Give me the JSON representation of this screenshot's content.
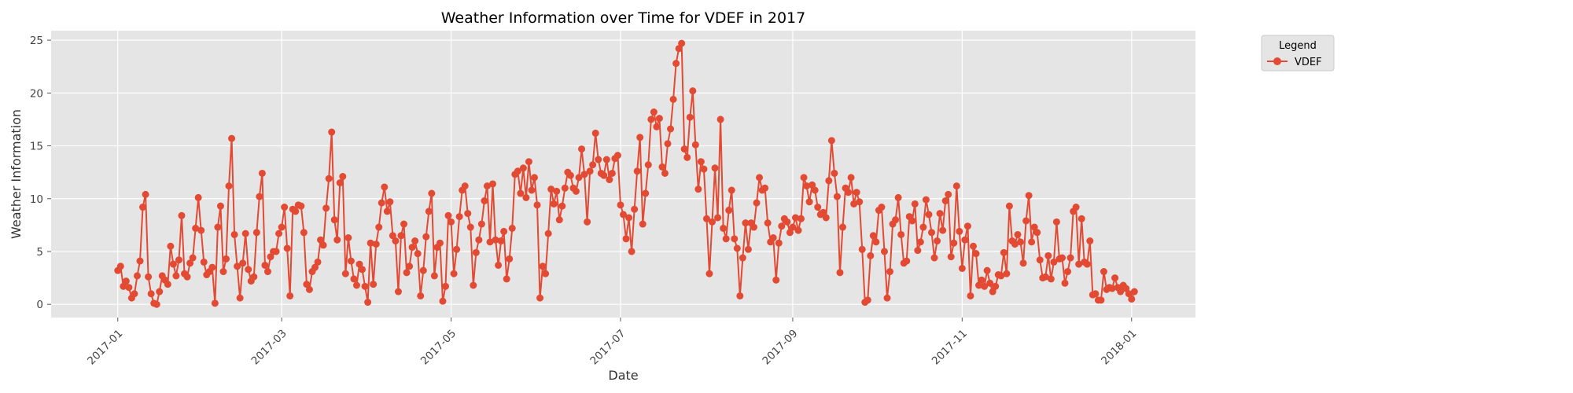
{
  "chart_data": {
    "type": "line",
    "title": "Weather Information over Time for VDEF in 2017",
    "xlabel": "Date",
    "ylabel": "Weather Information",
    "xlim": [
      "2016-12-08",
      "2018-01-24"
    ],
    "ylim": [
      -1.25,
      25.9
    ],
    "x_ticks": [
      "2017-01",
      "2017-03",
      "2017-05",
      "2017-07",
      "2017-09",
      "2017-11",
      "2018-01"
    ],
    "y_ticks": [
      0,
      5,
      10,
      15,
      20,
      25
    ],
    "grid": true,
    "legend": {
      "title": "Legend",
      "placement": "outside-top-right"
    },
    "colors": {
      "series": "#E24A33",
      "plot_bg": "#E5E5E5",
      "grid": "#FFFFFF"
    },
    "series": [
      {
        "name": "VDEF",
        "start_date": "2017-01-01",
        "step_days": 1,
        "values": [
          3.2,
          3.6,
          1.7,
          2.2,
          1.6,
          0.6,
          1.0,
          2.7,
          4.1,
          9.2,
          10.4,
          2.6,
          1.0,
          0.1,
          0.0,
          1.2,
          2.7,
          2.3,
          1.9,
          5.5,
          3.8,
          2.7,
          4.2,
          8.4,
          2.9,
          2.6,
          3.9,
          4.4,
          7.2,
          10.1,
          7.0,
          4.0,
          2.8,
          3.1,
          3.5,
          0.1,
          7.3,
          9.3,
          3.1,
          4.3,
          11.2,
          15.7,
          6.6,
          3.6,
          0.6,
          3.9,
          6.7,
          3.3,
          2.2,
          2.6,
          6.8,
          10.2,
          12.4,
          3.7,
          3.1,
          4.5,
          5.0,
          5.0,
          6.7,
          7.3,
          9.2,
          5.3,
          0.8,
          9.0,
          8.8,
          9.4,
          9.3,
          6.8,
          1.9,
          1.4,
          3.1,
          3.5,
          4.0,
          6.1,
          5.6,
          9.1,
          11.9,
          16.3,
          8.0,
          6.1,
          11.5,
          12.1,
          2.9,
          6.3,
          4.1,
          2.4,
          1.8,
          3.8,
          3.3,
          1.7,
          0.2,
          5.8,
          1.9,
          5.7,
          7.3,
          9.6,
          11.1,
          8.8,
          9.7,
          6.5,
          6.0,
          1.2,
          6.5,
          7.6,
          3.0,
          3.6,
          5.4,
          6.0,
          4.8,
          0.8,
          3.2,
          6.4,
          8.8,
          10.5,
          2.7,
          5.4,
          5.8,
          0.3,
          1.7,
          8.4,
          7.8,
          2.9,
          5.2,
          8.3,
          10.8,
          11.2,
          8.6,
          7.3,
          1.8,
          4.9,
          6.1,
          7.6,
          9.8,
          11.2,
          5.9,
          11.4,
          6.1,
          3.7,
          6.0,
          6.9,
          2.4,
          4.3,
          7.2,
          12.3,
          12.6,
          10.5,
          12.9,
          10.1,
          13.5,
          10.8,
          12.0,
          9.4,
          0.6,
          3.6,
          2.9,
          6.7,
          10.9,
          9.5,
          10.7,
          8.0,
          9.3,
          11.0,
          12.5,
          12.2,
          11.0,
          10.7,
          12.0,
          14.7,
          12.3,
          7.8,
          12.6,
          13.2,
          16.2,
          13.7,
          12.4,
          12.2,
          13.7,
          11.8,
          12.4,
          13.8,
          14.1,
          9.4,
          8.5,
          6.2,
          8.2,
          5.0,
          9.0,
          12.6,
          15.8,
          7.6,
          10.5,
          13.2,
          17.5,
          18.2,
          16.8,
          17.6,
          13.0,
          12.4,
          15.2,
          16.6,
          19.4,
          22.8,
          24.2,
          24.7,
          14.7,
          13.9,
          17.7,
          20.2,
          15.1,
          10.9,
          13.5,
          12.8,
          8.1,
          2.9,
          7.8,
          12.9,
          8.2,
          17.5,
          7.2,
          6.2,
          8.9,
          10.8,
          6.2,
          5.3,
          0.8,
          4.4,
          7.7,
          5.2,
          7.7,
          7.3,
          9.6,
          12.0,
          10.8,
          11.0,
          7.7,
          5.9,
          6.3,
          2.3,
          5.8,
          7.4,
          8.1,
          7.8,
          6.8,
          7.3,
          8.2,
          7.0,
          8.1,
          12.0,
          11.2,
          9.7,
          11.3,
          10.8,
          9.2,
          8.5,
          8.7,
          8.2,
          11.7,
          15.5,
          12.4,
          10.2,
          3.0,
          7.3,
          11.0,
          10.6,
          12.0,
          9.5,
          10.6,
          9.7,
          5.2,
          0.2,
          0.4,
          4.6,
          6.5,
          5.9,
          8.9,
          9.2,
          5.0,
          0.6,
          3.1,
          7.6,
          8.0,
          10.1,
          6.6,
          3.9,
          4.1,
          8.3,
          7.9,
          9.5,
          5.1,
          5.9,
          7.3,
          9.9,
          8.5,
          6.8,
          4.4,
          6.0,
          8.6,
          7.0,
          9.8,
          10.4,
          4.5,
          5.8,
          11.2,
          6.9,
          3.4,
          6.1,
          7.4,
          0.8,
          5.5,
          4.8,
          1.8,
          2.3,
          1.7,
          3.2,
          2.0,
          1.2,
          1.7,
          2.8,
          2.7,
          4.9,
          2.9,
          9.3,
          6.0,
          5.7,
          6.6,
          5.9,
          3.9,
          7.9,
          10.3,
          5.9,
          7.3,
          6.8,
          4.2,
          2.5,
          2.6,
          4.6,
          2.4,
          4.0,
          7.8,
          4.3,
          4.4,
          2.0,
          3.1,
          4.4,
          8.8,
          9.2,
          3.8,
          8.1,
          4.0,
          3.8,
          6.0,
          0.9,
          1.0,
          0.4,
          0.4,
          3.1,
          1.4,
          1.6,
          1.5,
          2.5,
          1.6,
          1.2,
          1.8,
          1.5,
          1.0,
          0.5,
          1.2
        ]
      }
    ]
  }
}
